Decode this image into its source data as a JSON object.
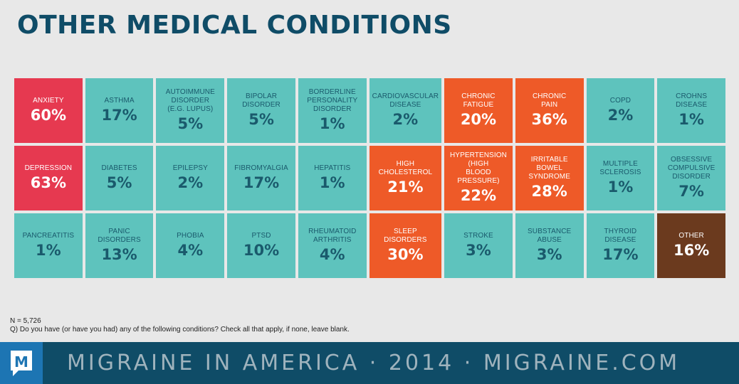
{
  "colors": {
    "teal": "#5ec3bd",
    "orange": "#ee5a28",
    "red": "#e63950",
    "brown": "#6b3a1e",
    "title": "#0f4c67",
    "footer_bg": "#0f4c67",
    "logo_bg": "#1d75b3"
  },
  "title": "OTHER MEDICAL CONDITIONS",
  "note_n": "N = 5,726",
  "note_q": "Q) Do you have (or have you had) any of the following conditions? Check all that apply, if none, leave blank.",
  "footer": {
    "logo_letter": "M",
    "text": "MIGRAINE IN AMERICA · 2014 · MIGRAINE.COM"
  },
  "chart_data": {
    "type": "table",
    "unit": "%",
    "cells": [
      {
        "label": "ANXIETY",
        "value": 60,
        "display": "60%",
        "color": "red"
      },
      {
        "label": "ASTHMA",
        "value": 17,
        "display": "17%",
        "color": "teal"
      },
      {
        "label": "AUTOIMMUNE DISORDER\n(E.G. LUPUS)",
        "value": 5,
        "display": "5%",
        "color": "teal"
      },
      {
        "label": "BIPOLAR\nDISORDER",
        "value": 5,
        "display": "5%",
        "color": "teal"
      },
      {
        "label": "BORDERLINE PERSONALITY\nDISORDER",
        "value": 1,
        "display": "1%",
        "color": "teal"
      },
      {
        "label": "CARDIOVASCULAR\nDISEASE",
        "value": 2,
        "display": "2%",
        "color": "teal"
      },
      {
        "label": "CHRONIC\nFATIGUE",
        "value": 20,
        "display": "20%",
        "color": "orange"
      },
      {
        "label": "CHRONIC\nPAIN",
        "value": 36,
        "display": "36%",
        "color": "orange"
      },
      {
        "label": "COPD",
        "value": 2,
        "display": "2%",
        "color": "teal"
      },
      {
        "label": "CROHNS\nDISEASE",
        "value": 1,
        "display": "1%",
        "color": "teal"
      },
      {
        "label": "DEPRESSION",
        "value": 63,
        "display": "63%",
        "color": "red"
      },
      {
        "label": "DIABETES",
        "value": 5,
        "display": "5%",
        "color": "teal"
      },
      {
        "label": "EPILEPSY",
        "value": 2,
        "display": "2%",
        "color": "teal"
      },
      {
        "label": "FIBROMYALGIA",
        "value": 17,
        "display": "17%",
        "color": "teal"
      },
      {
        "label": "HEPATITIS",
        "value": 1,
        "display": "1%",
        "color": "teal"
      },
      {
        "label": "HIGH\nCHOLESTEROL",
        "value": 21,
        "display": "21%",
        "color": "orange"
      },
      {
        "label": "HYPERTENSION (HIGH\nBLOOD PRESSURE)",
        "value": 22,
        "display": "22%",
        "color": "orange"
      },
      {
        "label": "IRRITABLE BOWEL\nSYNDROME",
        "value": 28,
        "display": "28%",
        "color": "orange"
      },
      {
        "label": "MULTIPLE SCLEROSIS",
        "value": 1,
        "display": "1%",
        "color": "teal"
      },
      {
        "label": "OBSESSIVE COMPULSIVE\nDISORDER",
        "value": 7,
        "display": "7%",
        "color": "teal"
      },
      {
        "label": "PANCREATITIS",
        "value": 1,
        "display": "1%",
        "color": "teal"
      },
      {
        "label": "PANIC DISORDERS",
        "value": 13,
        "display": "13%",
        "color": "teal"
      },
      {
        "label": "PHOBIA",
        "value": 4,
        "display": "4%",
        "color": "teal"
      },
      {
        "label": "PTSD",
        "value": 10,
        "display": "10%",
        "color": "teal"
      },
      {
        "label": "RHEUMATOID\nARTHRITIS",
        "value": 4,
        "display": "4%",
        "color": "teal"
      },
      {
        "label": "SLEEP\nDISORDERS",
        "value": 30,
        "display": "30%",
        "color": "orange"
      },
      {
        "label": "STROKE",
        "value": 3,
        "display": "3%",
        "color": "teal"
      },
      {
        "label": "SUBSTANCE\nABUSE",
        "value": 3,
        "display": "3%",
        "color": "teal"
      },
      {
        "label": "THYROID\nDISEASE",
        "value": 17,
        "display": "17%",
        "color": "teal"
      },
      {
        "label": "OTHER",
        "value": 16,
        "display": "16%",
        "color": "brown"
      }
    ]
  }
}
